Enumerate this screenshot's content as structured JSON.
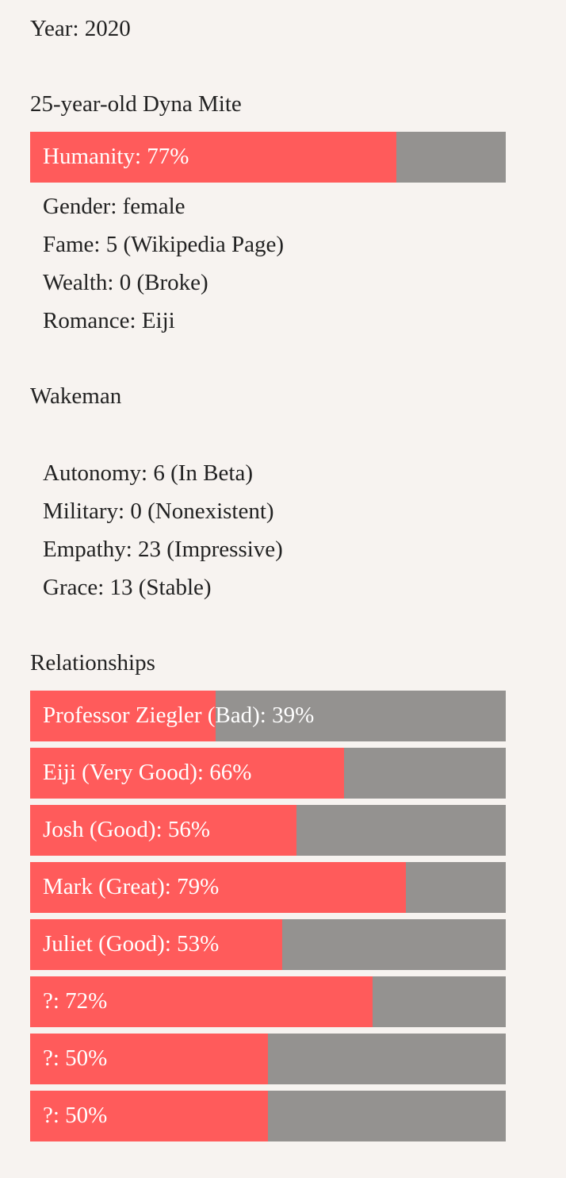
{
  "year": "Year: 2020",
  "character": {
    "title": "25-year-old Dyna Mite",
    "humanity": {
      "label": "Humanity: 77%",
      "percent": 77
    },
    "stats": [
      "Gender: female",
      "Fame: 5 (Wikipedia Page)",
      "Wealth: 0 (Broke)",
      "Romance: Eiji"
    ]
  },
  "wakeman": {
    "title": "Wakeman",
    "stats": [
      "Autonomy: 6 (In Beta)",
      "Military: 0 (Nonexistent)",
      "Empathy: 23 (Impressive)",
      "Grace: 13 (Stable)"
    ]
  },
  "relationships": {
    "title": "Relationships",
    "items": [
      {
        "label": "Professor Ziegler (Bad): 39%",
        "percent": 39
      },
      {
        "label": "Eiji (Very Good): 66%",
        "percent": 66
      },
      {
        "label": "Josh (Good): 56%",
        "percent": 56
      },
      {
        "label": "Mark (Great): 79%",
        "percent": 79
      },
      {
        "label": "Juliet (Good): 53%",
        "percent": 53
      },
      {
        "label": "?: 72%",
        "percent": 72
      },
      {
        "label": "?: 50%",
        "percent": 50
      },
      {
        "label": "?: 50%",
        "percent": 50
      }
    ]
  },
  "colors": {
    "fill": "#ff5b5b",
    "track": "#949290",
    "background": "#f7f3f0"
  }
}
